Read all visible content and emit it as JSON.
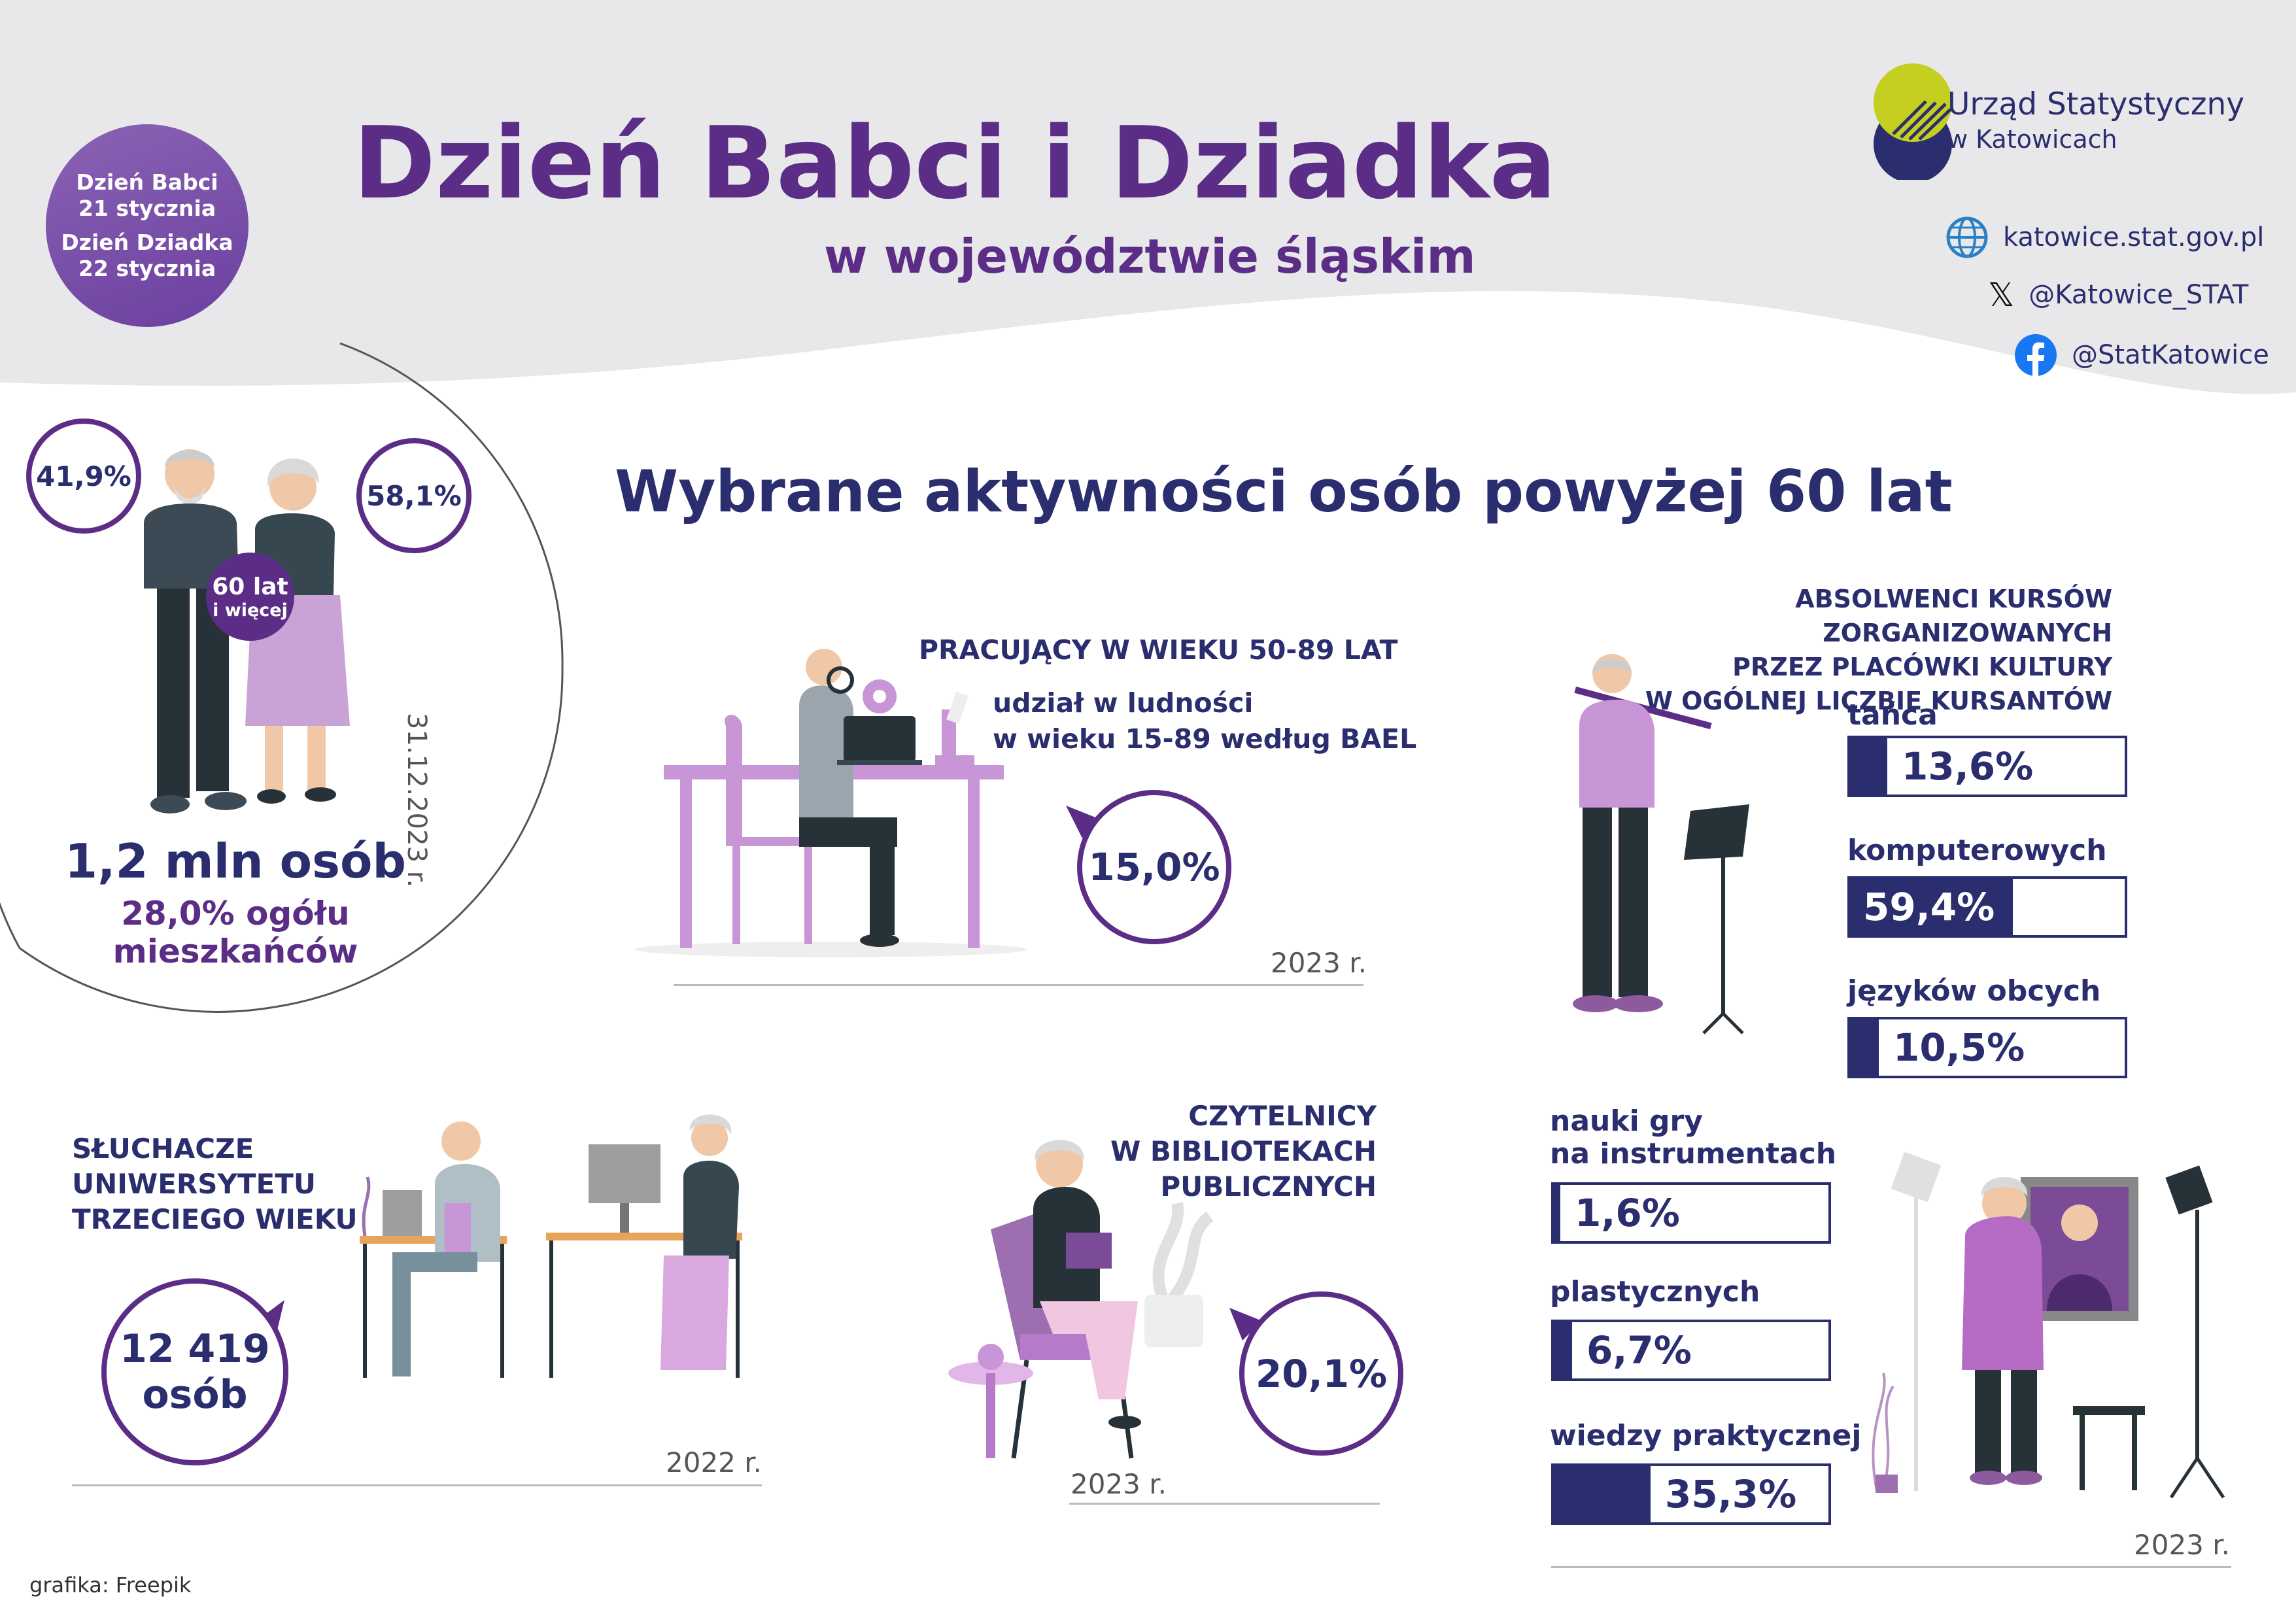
{
  "header": {
    "badge_line1": "Dzień Babci",
    "badge_line2": "21 stycznia",
    "badge_line3": "Dzień Dziadka",
    "badge_line4": "22 stycznia",
    "title": "Dzień Babci i Dziadka",
    "subtitle": "w województwie śląskim",
    "org_line1": "Urząd Statystyczny",
    "org_line2": "w Katowicach",
    "website": "katowice.stat.gov.pl",
    "x_handle": "@Katowice_STAT",
    "fb_handle": "@StatKatowice"
  },
  "population": {
    "men_pct": "41,9%",
    "women_pct": "58,1%",
    "age_label_1": "60 lat",
    "age_label_2": "i więcej",
    "total": "1,2 mln osób",
    "share_line1": "28,0% ogółu",
    "share_line2": "mieszkańców",
    "date": "31.12.2023 r."
  },
  "section_title": "Wybrane aktywności osób powyżej 60 lat",
  "working": {
    "title": "PRACUJĄCY W WIEKU 50-89 LAT",
    "desc_line1": "udział w ludności",
    "desc_line2": "w wieku 15-89 według BAEL",
    "value": "15,0%",
    "year": "2023 r."
  },
  "courses": {
    "title_line1": "ABSOLWENCI KURSÓW ZORGANIZOWANYCH",
    "title_line2": "PRZEZ PLACÓWKI KULTURY",
    "title_line3": "W OGÓLNEJ LICZBIE KURSANTÓW",
    "items": [
      {
        "label": "tańca",
        "value": "13,6%",
        "fraction": 0.136
      },
      {
        "label": "komputerowych",
        "value": "59,4%",
        "fraction": 0.594
      },
      {
        "label": "języków obcych",
        "value": "10,5%",
        "fraction": 0.105
      },
      {
        "label_line1": "nauki gry",
        "label_line2": "na instrumentach",
        "value": "1,6%",
        "fraction": 0.016
      },
      {
        "label": "plastycznych",
        "value": "6,7%",
        "fraction": 0.067
      },
      {
        "label": "wiedzy praktycznej",
        "value": "35,3%",
        "fraction": 0.353
      }
    ],
    "year": "2023 r."
  },
  "university": {
    "title_line1": "SŁUCHACZE",
    "title_line2": "UNIWERSYTETU",
    "title_line3": "TRZECIEGO WIEKU",
    "value_line1": "12 419",
    "value_line2": "osób",
    "year": "2022 r."
  },
  "readers": {
    "title_line1": "CZYTELNICY",
    "title_line2": "W BIBLIOTEKACH",
    "title_line3": "PUBLICZNYCH",
    "value": "20,1%",
    "year": "2023 r."
  },
  "credit": "grafika: Freepik",
  "colors": {
    "navy": "#2a2d6e",
    "purple": "#5b2d86",
    "lilac": "#c48fd0",
    "grey": "#e8e8ea"
  }
}
